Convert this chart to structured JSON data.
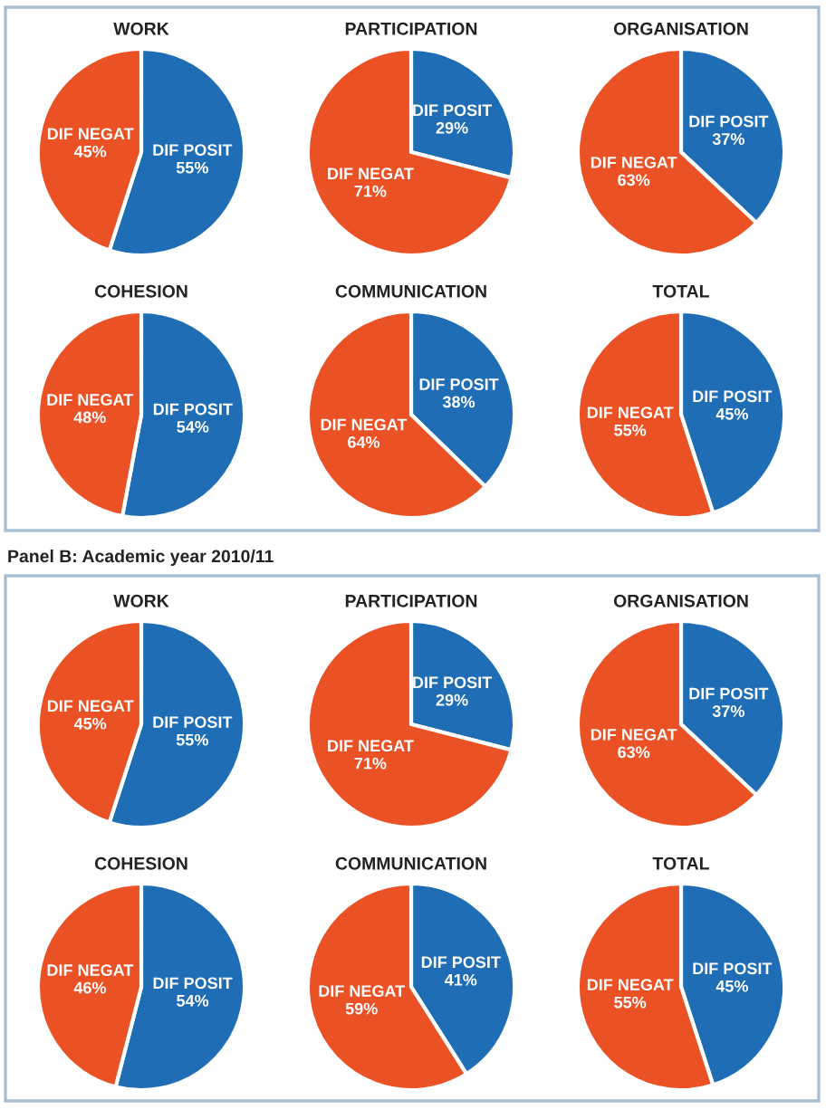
{
  "chart_data": [
    {
      "type": "pie",
      "title": "WORK",
      "categories": [
        "DIF POSIT",
        "DIF NEGAT"
      ],
      "values": [
        55,
        45
      ],
      "colors": [
        "#1f6db4",
        "#ea5124"
      ],
      "value_labels": [
        "55%",
        "45%"
      ]
    },
    {
      "type": "pie",
      "title": "PARTICIPATION",
      "categories": [
        "DIF POSIT",
        "DIF NEGAT"
      ],
      "values": [
        29,
        71
      ],
      "colors": [
        "#1f6db4",
        "#ea5124"
      ],
      "value_labels": [
        "29%",
        "71%"
      ]
    },
    {
      "type": "pie",
      "title": "ORGANISATION",
      "categories": [
        "DIF POSIT",
        "DIF NEGAT"
      ],
      "values": [
        37,
        63
      ],
      "colors": [
        "#1f6db4",
        "#ea5124"
      ],
      "value_labels": [
        "37%",
        "63%"
      ]
    },
    {
      "type": "pie",
      "title": "COHESION",
      "categories": [
        "DIF POSIT",
        "DIF NEGAT"
      ],
      "values": [
        54,
        48
      ],
      "colors": [
        "#1f6db4",
        "#ea5124"
      ],
      "value_labels": [
        "54%",
        "48%"
      ]
    },
    {
      "type": "pie",
      "title": "COMMUNICATION",
      "categories": [
        "DIF POSIT",
        "DIF NEGAT"
      ],
      "values": [
        38,
        64
      ],
      "colors": [
        "#1f6db4",
        "#ea5124"
      ],
      "value_labels": [
        "38%",
        "64%"
      ]
    },
    {
      "type": "pie",
      "title": "TOTAL",
      "categories": [
        "DIF POSIT",
        "DIF NEGAT"
      ],
      "values": [
        45,
        55
      ],
      "colors": [
        "#1f6db4",
        "#ea5124"
      ],
      "value_labels": [
        "45%",
        "55%"
      ]
    },
    {
      "type": "pie",
      "title": "WORK",
      "annotations": [
        "Panel B: Academic year 2010/11"
      ],
      "categories": [
        "DIF POSIT",
        "DIF NEGAT"
      ],
      "values": [
        55,
        45
      ],
      "colors": [
        "#1f6db4",
        "#ea5124"
      ],
      "value_labels": [
        "55%",
        "45%"
      ]
    },
    {
      "type": "pie",
      "title": "PARTICIPATION",
      "categories": [
        "DIF POSIT",
        "DIF NEGAT"
      ],
      "values": [
        29,
        71
      ],
      "colors": [
        "#1f6db4",
        "#ea5124"
      ],
      "value_labels": [
        "29%",
        "71%"
      ]
    },
    {
      "type": "pie",
      "title": "ORGANISATION",
      "categories": [
        "DIF POSIT",
        "DIF NEGAT"
      ],
      "values": [
        37,
        63
      ],
      "colors": [
        "#1f6db4",
        "#ea5124"
      ],
      "value_labels": [
        "37%",
        "63%"
      ]
    },
    {
      "type": "pie",
      "title": "COHESION",
      "categories": [
        "DIF POSIT",
        "DIF NEGAT"
      ],
      "values": [
        54,
        46
      ],
      "colors": [
        "#1f6db4",
        "#ea5124"
      ],
      "value_labels": [
        "54%",
        "46%"
      ]
    },
    {
      "type": "pie",
      "title": "COMMUNICATION",
      "categories": [
        "DIF POSIT",
        "DIF NEGAT"
      ],
      "values": [
        41,
        59
      ],
      "colors": [
        "#1f6db4",
        "#ea5124"
      ],
      "value_labels": [
        "41%",
        "59%"
      ]
    },
    {
      "type": "pie",
      "title": "TOTAL",
      "categories": [
        "DIF POSIT",
        "DIF NEGAT"
      ],
      "values": [
        45,
        55
      ],
      "colors": [
        "#1f6db4",
        "#ea5124"
      ],
      "value_labels": [
        "45%",
        "55%"
      ]
    }
  ]
}
